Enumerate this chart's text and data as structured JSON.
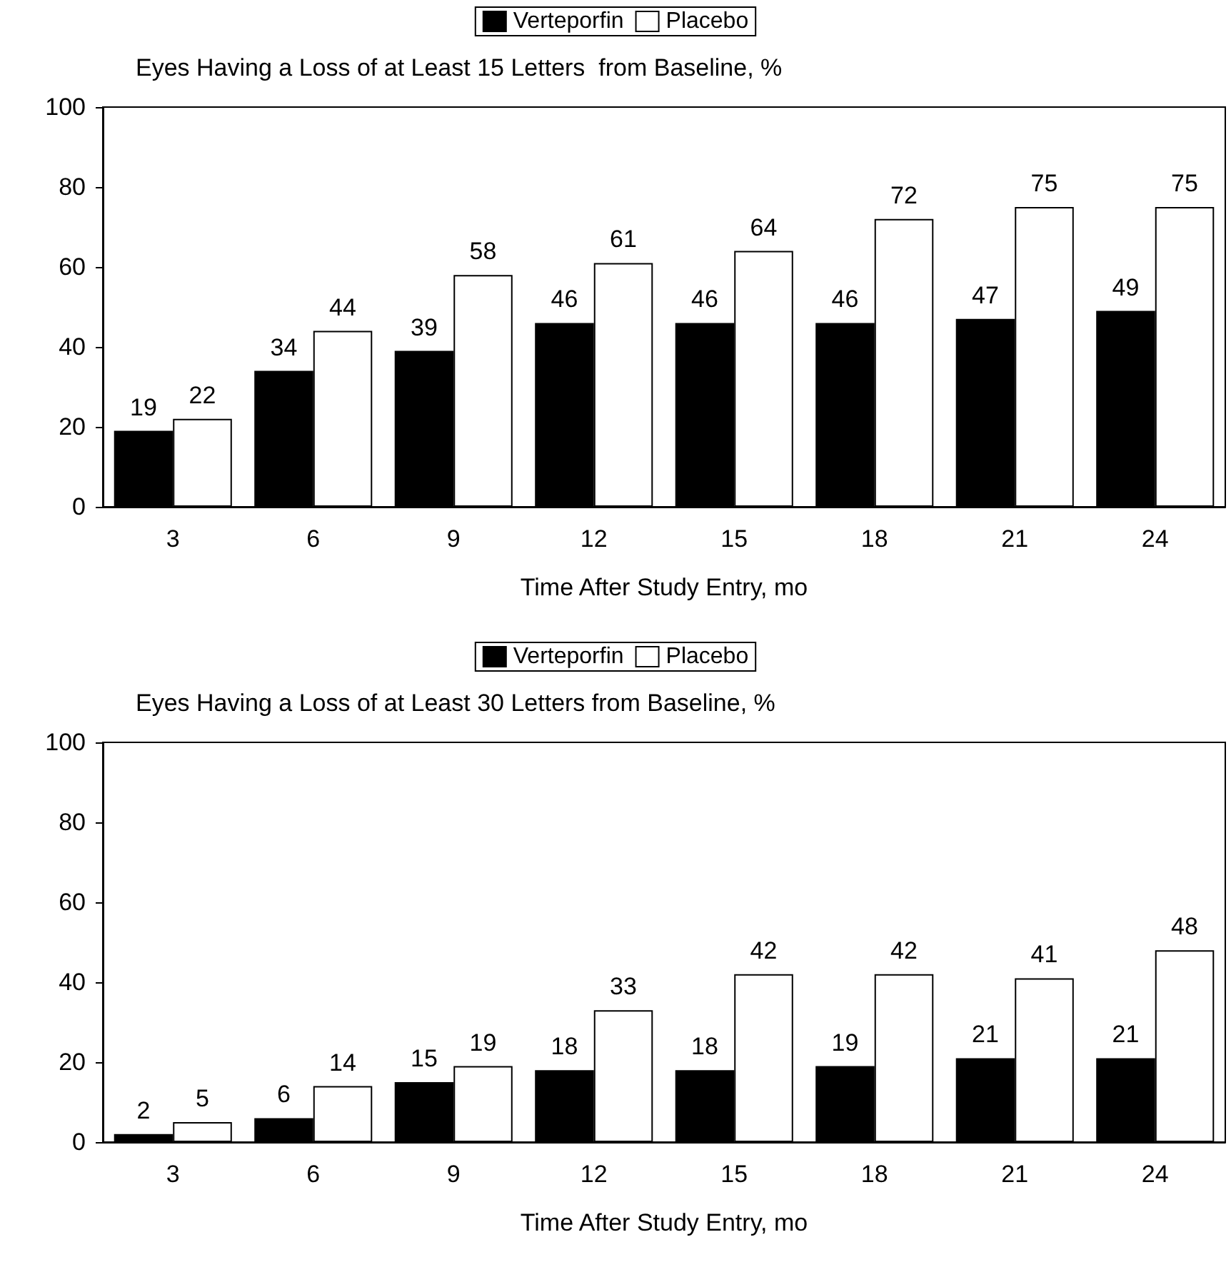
{
  "chart_data": [
    {
      "type": "bar",
      "title": "Eyes Having a Loss of at Least 15 Letters  from Baseline, %",
      "xlabel": "Time After Study Entry, mo",
      "categories": [
        "3",
        "6",
        "9",
        "12",
        "15",
        "18",
        "21",
        "24"
      ],
      "series": [
        {
          "name": "Verteporfin",
          "color": "#000000",
          "values": [
            19,
            34,
            39,
            46,
            46,
            46,
            47,
            49
          ]
        },
        {
          "name": "Placebo",
          "color": "#ffffff",
          "values": [
            22,
            44,
            58,
            61,
            64,
            72,
            75,
            75
          ]
        }
      ],
      "ylim": [
        0,
        100
      ],
      "yticks": [
        0,
        20,
        40,
        60,
        80,
        100
      ],
      "grid": false,
      "legend": "top",
      "data_labels": true
    },
    {
      "type": "bar",
      "title": "Eyes Having a Loss of at Least 30 Letters from Baseline, %",
      "xlabel": "Time After Study Entry, mo",
      "categories": [
        "3",
        "6",
        "9",
        "12",
        "15",
        "18",
        "21",
        "24"
      ],
      "series": [
        {
          "name": "Verteporfin",
          "color": "#000000",
          "values": [
            2,
            6,
            15,
            18,
            18,
            19,
            21,
            21
          ]
        },
        {
          "name": "Placebo",
          "color": "#ffffff",
          "values": [
            5,
            14,
            19,
            33,
            42,
            42,
            41,
            48
          ]
        }
      ],
      "ylim": [
        0,
        100
      ],
      "yticks": [
        0,
        20,
        40,
        60,
        80,
        100
      ],
      "grid": false,
      "legend": "top",
      "data_labels": true
    }
  ]
}
